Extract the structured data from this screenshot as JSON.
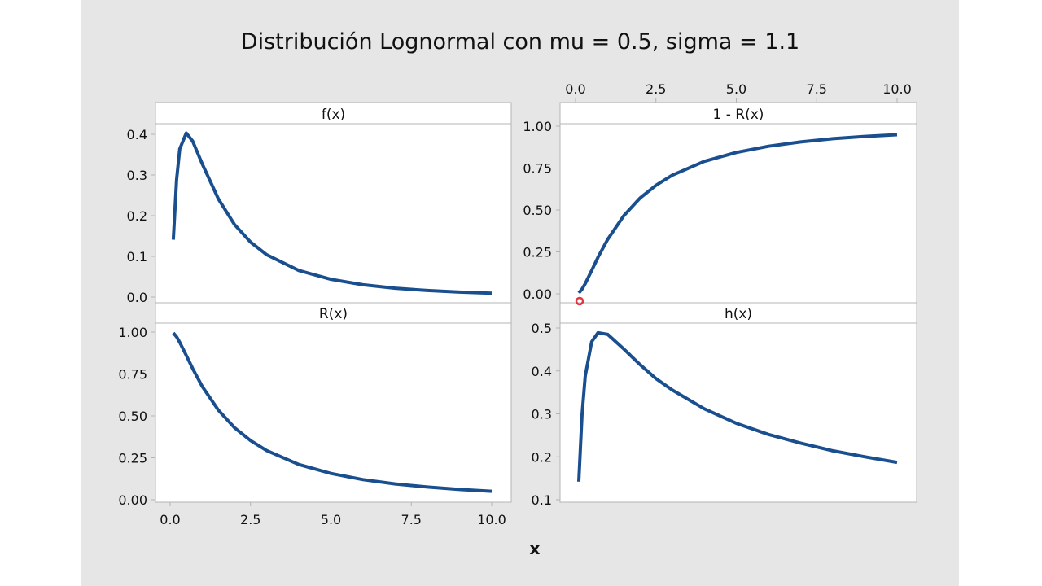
{
  "title": "Distribución Lognormal con mu = 0.5, sigma = 1.1",
  "xlabel": "x",
  "colors": {
    "background": "#e6e6e6",
    "panel": "#ffffff",
    "line": "#1a4f8f",
    "frame": "#b4b4b4",
    "cursor": "#e0202a"
  },
  "chart_data": [
    {
      "type": "line",
      "title": "f(x)",
      "panel": "top-left",
      "x": [
        0.1,
        0.2,
        0.3,
        0.5,
        0.7,
        1,
        1.5,
        2,
        2.5,
        3,
        4,
        5,
        6,
        7,
        8,
        9,
        10
      ],
      "y": [
        0.141,
        0.288,
        0.364,
        0.403,
        0.383,
        0.327,
        0.241,
        0.1785,
        0.135,
        0.1043,
        0.0655,
        0.0436,
        0.0302,
        0.0219,
        0.0162,
        0.0123,
        0.0095
      ],
      "xlim": [
        0,
        10
      ],
      "ylim": [
        0,
        0.4
      ],
      "yticks": [
        "0.0",
        "0.1",
        "0.2",
        "0.3",
        "0.4"
      ],
      "ytick_values": [
        0,
        0.1,
        0.2,
        0.3,
        0.4
      ]
    },
    {
      "type": "line",
      "title": "1 - R(x)",
      "panel": "top-right",
      "x": [
        0.1,
        0.2,
        0.3,
        0.5,
        0.7,
        1,
        1.5,
        2,
        2.5,
        3,
        4,
        5,
        6,
        7,
        8,
        9,
        10
      ],
      "y": [
        0.0054,
        0.0276,
        0.0607,
        0.139,
        0.218,
        0.325,
        0.466,
        0.57,
        0.647,
        0.707,
        0.79,
        0.843,
        0.88,
        0.906,
        0.925,
        0.939,
        0.949
      ],
      "xlim": [
        0,
        10
      ],
      "ylim": [
        0,
        1
      ],
      "yticks": [
        "0.00",
        "0.25",
        "0.50",
        "0.75",
        "1.00"
      ],
      "ytick_values": [
        0,
        0.25,
        0.5,
        0.75,
        1
      ],
      "xticks": [
        "0.0",
        "2.5",
        "5.0",
        "7.5",
        "10.0"
      ],
      "xtick_values": [
        0,
        2.5,
        5,
        7.5,
        10
      ],
      "xaxis_position": "top"
    },
    {
      "type": "line",
      "title": "R(x)",
      "panel": "bottom-left",
      "x": [
        0.1,
        0.2,
        0.3,
        0.5,
        0.7,
        1,
        1.5,
        2,
        2.5,
        3,
        4,
        5,
        6,
        7,
        8,
        9,
        10
      ],
      "y": [
        0.9946,
        0.972,
        0.939,
        0.861,
        0.782,
        0.675,
        0.534,
        0.43,
        0.353,
        0.293,
        0.21,
        0.157,
        0.12,
        0.094,
        0.0755,
        0.0614,
        0.0506
      ],
      "xlim": [
        0,
        10
      ],
      "ylim": [
        0,
        1
      ],
      "yticks": [
        "0.00",
        "0.25",
        "0.50",
        "0.75",
        "1.00"
      ],
      "ytick_values": [
        0,
        0.25,
        0.5,
        0.75,
        1
      ],
      "xticks": [
        "0.0",
        "2.5",
        "5.0",
        "7.5",
        "10.0"
      ],
      "xtick_values": [
        0,
        2.5,
        5,
        7.5,
        10
      ],
      "xaxis_position": "bottom"
    },
    {
      "type": "line",
      "title": "h(x)",
      "panel": "bottom-right",
      "x": [
        0.1,
        0.2,
        0.3,
        0.5,
        0.7,
        1,
        1.5,
        2,
        2.5,
        3,
        4,
        5,
        6,
        7,
        8,
        9,
        10
      ],
      "y": [
        0.142,
        0.296,
        0.388,
        0.468,
        0.489,
        0.485,
        0.451,
        0.415,
        0.382,
        0.356,
        0.312,
        0.278,
        0.252,
        0.232,
        0.214,
        0.2,
        0.187
      ],
      "xlim": [
        0,
        10
      ],
      "ylim": [
        0.1,
        0.5
      ],
      "yticks": [
        "0.1",
        "0.2",
        "0.3",
        "0.4",
        "0.5"
      ],
      "ytick_values": [
        0.1,
        0.2,
        0.3,
        0.4,
        0.5
      ]
    }
  ]
}
